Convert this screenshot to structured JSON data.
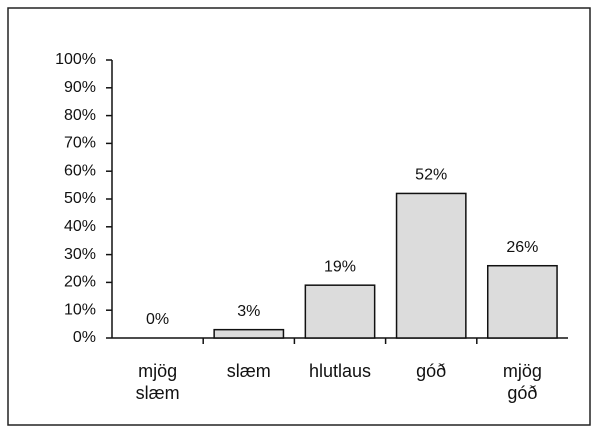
{
  "chart_data": {
    "type": "bar",
    "categories": [
      "mjög slæm",
      "slæm",
      "hlutlaus",
      "góð",
      "mjög góð"
    ],
    "values": [
      0,
      3,
      19,
      52,
      26
    ],
    "value_labels": [
      "0%",
      "3%",
      "19%",
      "52%",
      "26%"
    ],
    "color": "#dcdcdc",
    "ylim": [
      0,
      100
    ],
    "yticks": [
      {
        "value": 0,
        "label": "0%"
      },
      {
        "value": 10,
        "label": "10%"
      },
      {
        "value": 20,
        "label": "20%"
      },
      {
        "value": 30,
        "label": "30%"
      },
      {
        "value": 40,
        "label": "40%"
      },
      {
        "value": 50,
        "label": "50%"
      },
      {
        "value": 60,
        "label": "60%"
      },
      {
        "value": 70,
        "label": "70%"
      },
      {
        "value": 80,
        "label": "80%"
      },
      {
        "value": 90,
        "label": "90%"
      },
      {
        "value": 100,
        "label": "100%"
      }
    ]
  }
}
